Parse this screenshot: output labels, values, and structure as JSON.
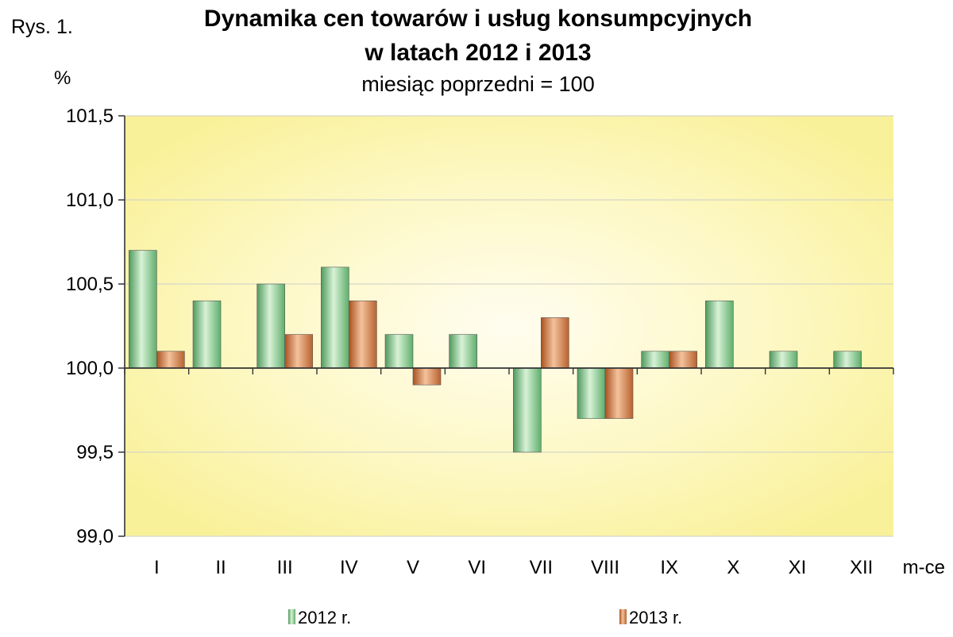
{
  "figure_label": "Rys. 1.",
  "chart_data": {
    "type": "bar",
    "title_line1": "Dynamika cen towarów i usług konsumpcyjnych",
    "title_line2": "w latach 2012 i 2013",
    "subtitle": "miesiąc poprzedni = 100",
    "ylabel": "%",
    "xlabel": "m-ce",
    "ylim": [
      99.0,
      101.5
    ],
    "baseline": 100.0,
    "yticks": [
      99.0,
      99.5,
      100.0,
      100.5,
      101.0,
      101.5
    ],
    "ytick_labels": [
      "99,0",
      "99,5",
      "100,0",
      "100,5",
      "101,0",
      "101,5"
    ],
    "categories": [
      "I",
      "II",
      "III",
      "IV",
      "V",
      "VI",
      "VII",
      "VIII",
      "IX",
      "X",
      "XI",
      "XII"
    ],
    "series": [
      {
        "name": "2012 r.",
        "color": "#7fc98a",
        "values": [
          100.7,
          100.4,
          100.5,
          100.6,
          100.2,
          100.2,
          99.5,
          99.7,
          100.1,
          100.4,
          100.1,
          100.1
        ]
      },
      {
        "name": "2013 r.",
        "color": "#d98a52",
        "values": [
          100.1,
          null,
          100.2,
          100.4,
          99.9,
          null,
          100.3,
          99.7,
          100.1,
          null,
          null,
          null
        ]
      }
    ],
    "grid": true,
    "legend_position": "bottom"
  }
}
